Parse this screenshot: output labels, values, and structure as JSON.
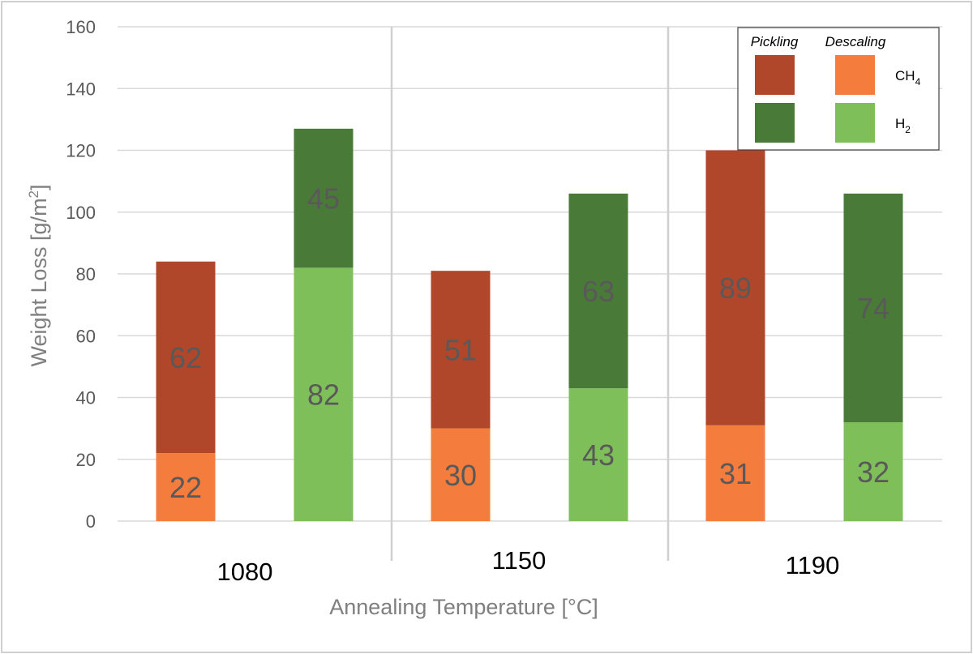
{
  "chart_data": {
    "type": "bar",
    "stacked": true,
    "title": "",
    "xlabel": "Annealing Temperature [°C]",
    "ylabel_main": "Weight Loss [g/m",
    "ylabel_sup": "2",
    "ylabel_close": "]",
    "ylim": [
      0,
      160
    ],
    "yticks": [
      "0",
      "20",
      "40",
      "60",
      "80",
      "100",
      "120",
      "140",
      "160"
    ],
    "categories": [
      "1080",
      "1150",
      "1190"
    ],
    "bars": [
      {
        "category": "1080",
        "atmosphere": "CH4",
        "descaling": 22,
        "pickling": 62,
        "descaling_label": "22",
        "pickling_label": "62"
      },
      {
        "category": "1080",
        "atmosphere": "H2",
        "descaling": 82,
        "pickling": 45,
        "descaling_label": "82",
        "pickling_label": "45"
      },
      {
        "category": "1150",
        "atmosphere": "CH4",
        "descaling": 30,
        "pickling": 51,
        "descaling_label": "30",
        "pickling_label": "51"
      },
      {
        "category": "1150",
        "atmosphere": "H2",
        "descaling": 43,
        "pickling": 63,
        "descaling_label": "43",
        "pickling_label": "63"
      },
      {
        "category": "1190",
        "atmosphere": "CH4",
        "descaling": 31,
        "pickling": 89,
        "descaling_label": "31",
        "pickling_label": "89"
      },
      {
        "category": "1190",
        "atmosphere": "H2",
        "descaling": 32,
        "pickling": 74,
        "descaling_label": "32",
        "pickling_label": "74"
      }
    ],
    "colors": {
      "CH4_pickling": "#b0472a",
      "CH4_descaling": "#f47c3c",
      "H2_pickling": "#4a7a38",
      "H2_descaling": "#7fbf59"
    },
    "legend": {
      "position": "top-right",
      "pickling_header": "Pickling",
      "descaling_header": "Descaling",
      "ch4_main": "CH",
      "ch4_sub": "4",
      "h2_main": "H",
      "h2_sub": "2"
    },
    "grid": true
  }
}
